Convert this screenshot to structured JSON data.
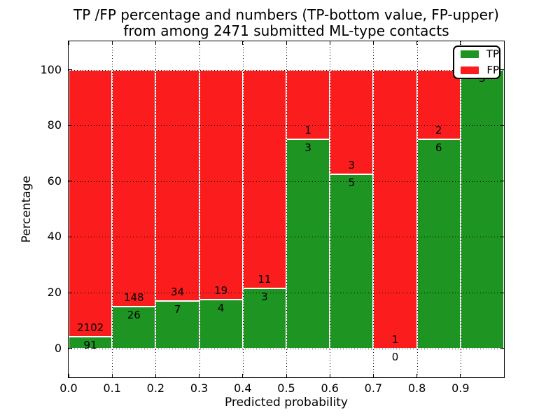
{
  "title": {
    "line1": "TP /FP percentage and numbers (TP-bottom value, FP-upper)",
    "line2": "from among 2471 submitted ML-type contacts"
  },
  "chart_data": {
    "type": "bar",
    "stacked": true,
    "normalized": "percent",
    "title": "TP /FP percentage and numbers (TP-bottom value, FP-upper) from among 2471 submitted ML-type contacts",
    "xlabel": "Predicted probability",
    "ylabel": "Percentage",
    "bins": [
      "0.0-0.1",
      "0.1-0.2",
      "0.2-0.3",
      "0.3-0.4",
      "0.4-0.5",
      "0.5-0.6",
      "0.6-0.7",
      "0.7-0.8",
      "0.8-0.9",
      "0.9-1.0"
    ],
    "series": [
      {
        "name": "TP",
        "color": "#1e9422",
        "values": [
          91,
          26,
          7,
          4,
          3,
          3,
          5,
          0,
          6,
          5
        ]
      },
      {
        "name": "FP",
        "color": "#fb1d1d",
        "values": [
          2102,
          148,
          34,
          19,
          11,
          1,
          3,
          1,
          2,
          0
        ]
      }
    ],
    "tp_percent": [
      4.1,
      14.9,
      17.1,
      17.4,
      21.4,
      75.0,
      62.5,
      0.0,
      75.0,
      100.0
    ],
    "total_contacts": 2471,
    "x_tick_labels": [
      "0.0",
      "0.1",
      "0.2",
      "0.3",
      "0.4",
      "0.5",
      "0.6",
      "0.7",
      "0.8",
      "0.9"
    ],
    "y_ticks": [
      0,
      20,
      40,
      60,
      80,
      100
    ],
    "xlim": [
      0.0,
      1.0
    ],
    "ylim": [
      -10.4,
      110.2
    ],
    "grid": "dotted, drawn above bars",
    "legend": {
      "position": "upper right",
      "entries": [
        "TP",
        "FP"
      ]
    }
  }
}
